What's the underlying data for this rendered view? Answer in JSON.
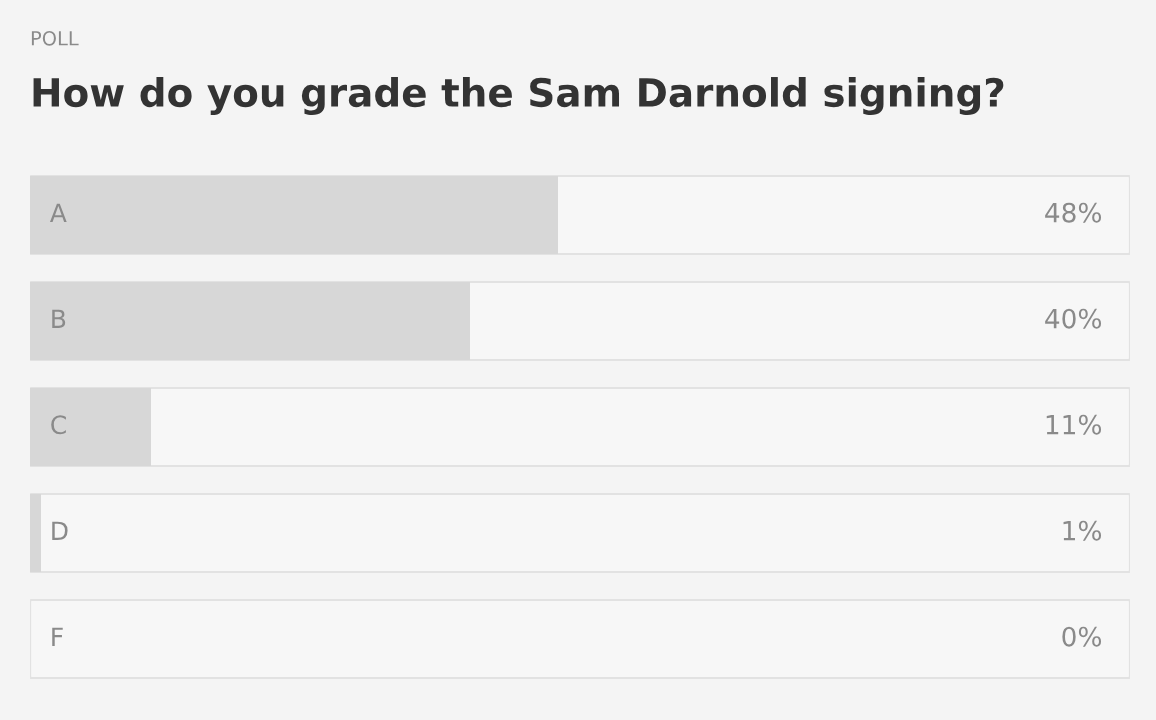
{
  "chart_data": {
    "type": "bar",
    "orientation": "horizontal",
    "subtitle": "POLL",
    "title": "How do you grade the Sam Darnold signing?",
    "categories": [
      "A",
      "B",
      "C",
      "D",
      "F"
    ],
    "values": [
      48,
      40,
      11,
      1,
      0
    ],
    "value_labels": [
      "48%",
      "40%",
      "11%",
      "1%",
      "0%"
    ],
    "color": "#d7d7d7",
    "xlim": [
      0,
      100
    ],
    "tick_labels": false
  }
}
